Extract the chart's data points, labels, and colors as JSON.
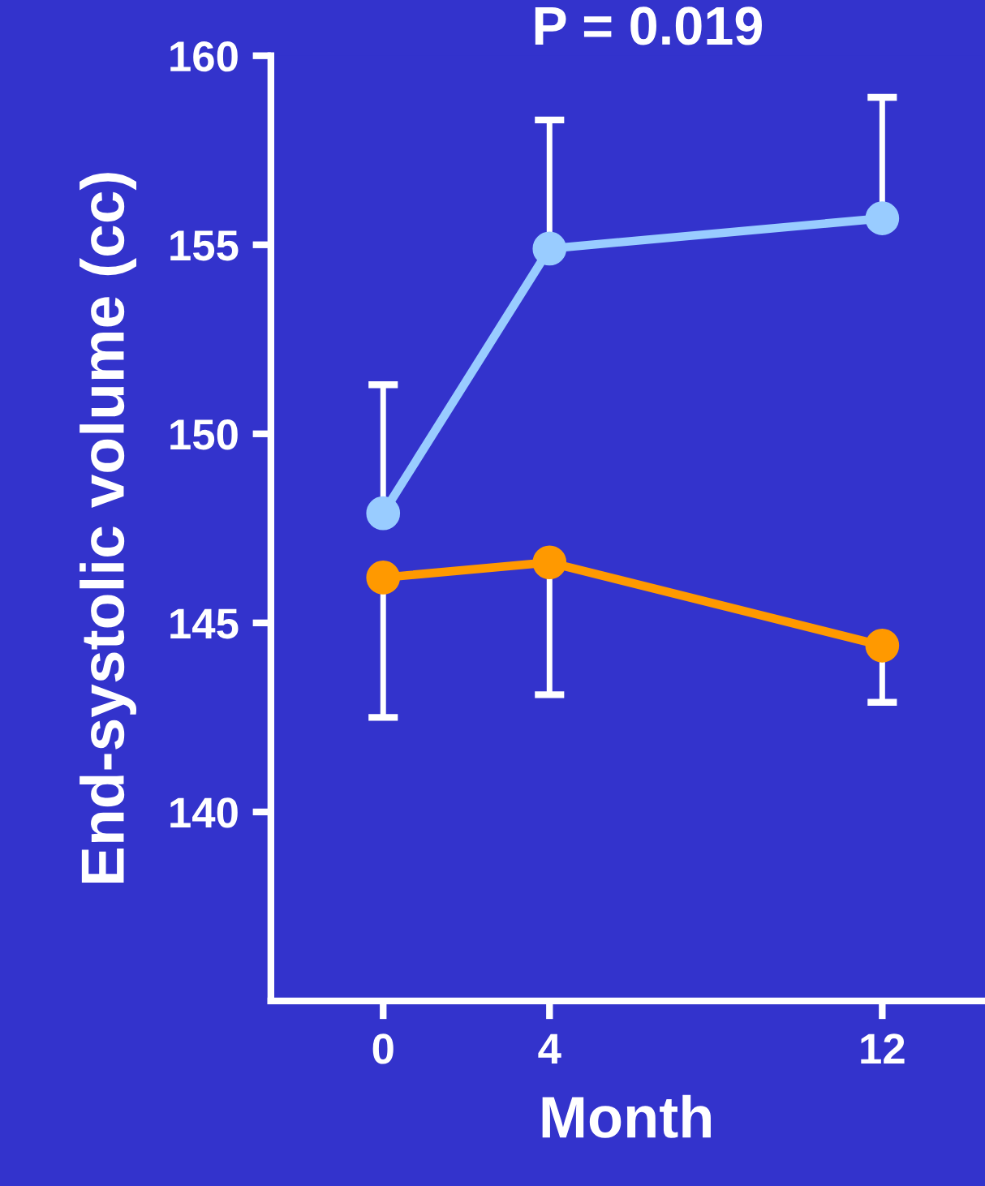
{
  "chart_data": {
    "type": "line",
    "title": "P = 0.019",
    "xlabel": "Month",
    "ylabel": "End-systolic volume (cc)",
    "x": [
      0,
      4,
      12
    ],
    "series": [
      {
        "color": "#99ccff",
        "values": [
          147.9,
          154.9,
          155.7
        ],
        "errors": [
          [
            147.9,
            151.3
          ],
          [
            154.9,
            158.3
          ],
          [
            155.7,
            158.9
          ]
        ]
      },
      {
        "color": "#ff9900",
        "values": [
          146.2,
          146.6,
          144.4
        ],
        "errors": [
          [
            142.5,
            146.2
          ],
          [
            143.1,
            146.6
          ],
          [
            142.9,
            144.4
          ]
        ]
      }
    ],
    "xlim": [
      -2.7,
      14.4
    ],
    "xticks": [
      0,
      4,
      12
    ],
    "ylim": [
      135,
      160
    ],
    "yticks": [
      140,
      145,
      150,
      155,
      160
    ],
    "marker": "circle",
    "line_style": "solid"
  }
}
